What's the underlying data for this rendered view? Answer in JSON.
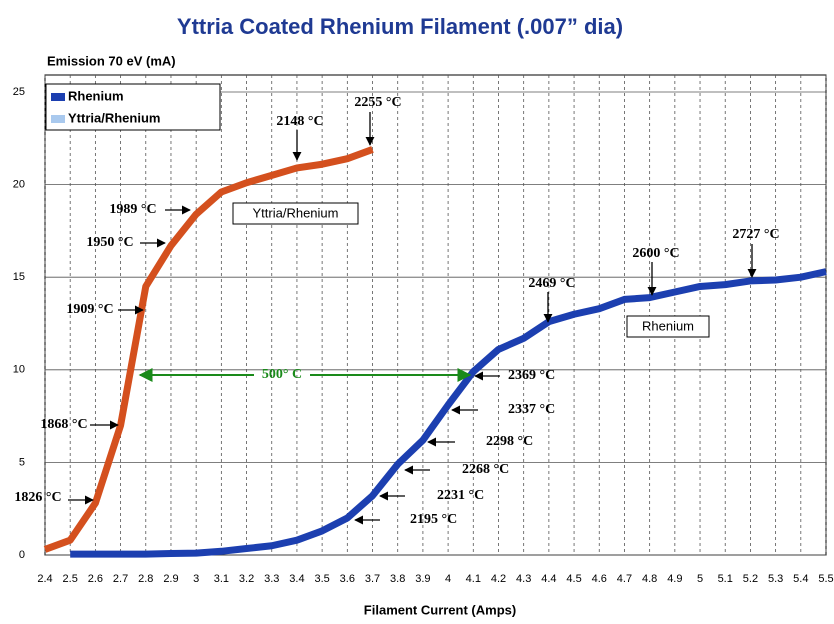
{
  "chart_data": {
    "type": "line",
    "title": "Yttria Coated Rhenium Filament (.007” dia)",
    "y_label": "Emission 70 eV (mA)",
    "x_label": "Filament Current (Amps)",
    "xlim": [
      2.4,
      5.5
    ],
    "ylim": [
      0,
      25
    ],
    "xticks": [
      2.4,
      2.5,
      2.6,
      2.7,
      2.8,
      2.9,
      3,
      3.1,
      3.2,
      3.3,
      3.4,
      3.5,
      3.6,
      3.7,
      3.8,
      3.9,
      4,
      4.1,
      4.2,
      4.3,
      4.4,
      4.5,
      4.6,
      4.7,
      4.8,
      4.9,
      5,
      5.1,
      5.2,
      5.3,
      5.4,
      5.5
    ],
    "yticks": [
      0,
      5,
      10,
      15,
      20,
      25
    ],
    "grid": true,
    "legend": "upper left",
    "series": [
      {
        "name": "Rhenium",
        "color": "#1c3fb0",
        "legend_color": "#1c3fb0",
        "x": [
          2.5,
          2.6,
          2.7,
          2.8,
          2.9,
          3.0,
          3.1,
          3.2,
          3.3,
          3.4,
          3.5,
          3.6,
          3.7,
          3.8,
          3.9,
          4.0,
          4.1,
          4.2,
          4.3,
          4.4,
          4.5,
          4.6,
          4.7,
          4.8,
          4.9,
          5.0,
          5.1,
          5.2,
          5.3,
          5.4,
          5.5
        ],
        "values": [
          0.05,
          0.05,
          0.05,
          0.05,
          0.08,
          0.1,
          0.2,
          0.35,
          0.5,
          0.8,
          1.3,
          2.0,
          3.2,
          4.9,
          6.2,
          8.1,
          9.9,
          11.1,
          11.7,
          12.6,
          13.0,
          13.3,
          13.8,
          13.9,
          14.2,
          14.5,
          14.6,
          14.8,
          14.85,
          15.0,
          15.3
        ]
      },
      {
        "name": "Yttria/Rhenium",
        "color": "#d4501e",
        "legend_color": "#a9c9ee",
        "x": [
          2.4,
          2.5,
          2.6,
          2.7,
          2.8,
          2.9,
          3.0,
          3.1,
          3.2,
          3.3,
          3.4,
          3.5,
          3.6,
          3.7
        ],
        "values": [
          0.3,
          0.8,
          2.8,
          7.0,
          14.5,
          16.7,
          18.4,
          19.6,
          20.1,
          20.5,
          20.9,
          21.1,
          21.4,
          21.9
        ]
      }
    ],
    "annotations": [
      "2255 °C",
      "2148 °C",
      "1989 °C",
      "1950 °C",
      "1909 °C",
      "1868 °C",
      "1826 °C",
      "500° C",
      "2369 °C",
      "2337 °C",
      "2298 °C",
      "2268 °C",
      "2231 °C",
      "2195 °C",
      "2469 °C",
      "2600 °C",
      "2727 °C"
    ]
  }
}
